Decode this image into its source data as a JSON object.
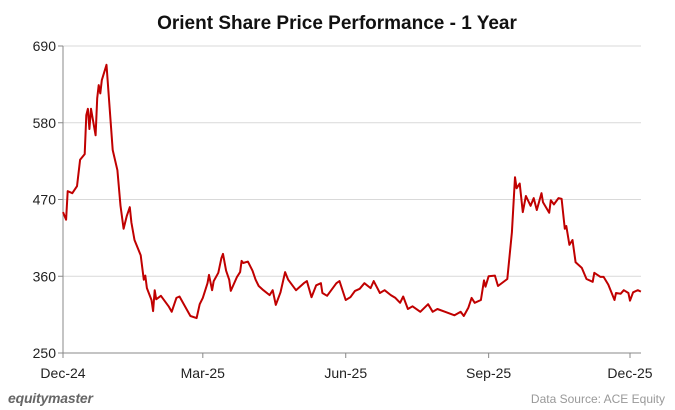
{
  "chart_data": {
    "type": "line",
    "title": "Orient Share Price Performance - 1 Year",
    "xlabel": "",
    "ylabel": "",
    "ylim": [
      250,
      690
    ],
    "y_ticks": [
      250,
      360,
      470,
      580,
      690
    ],
    "x_ticks": [
      {
        "label": "Dec-24",
        "date": "2024-12-01"
      },
      {
        "label": "Mar-25",
        "date": "2025-03-01"
      },
      {
        "label": "Jun-25",
        "date": "2025-06-01"
      },
      {
        "label": "Sep-25",
        "date": "2025-09-01"
      },
      {
        "label": "Dec-25",
        "date": "2025-12-01"
      }
    ],
    "grid": "horizontal",
    "line_color": "#c00000",
    "series": [
      {
        "points": [
          [
            "2024-12-01",
            452
          ],
          [
            "2024-12-03",
            441
          ],
          [
            "2024-12-04",
            482
          ],
          [
            "2024-12-07",
            479
          ],
          [
            "2024-12-10",
            489
          ],
          [
            "2024-12-12",
            527
          ],
          [
            "2024-12-15",
            535
          ],
          [
            "2024-12-16",
            591
          ],
          [
            "2024-12-17",
            600
          ],
          [
            "2024-12-18",
            571
          ],
          [
            "2024-12-19",
            600
          ],
          [
            "2024-12-22",
            562
          ],
          [
            "2024-12-23",
            615
          ],
          [
            "2024-12-24",
            634
          ],
          [
            "2024-12-25",
            622
          ],
          [
            "2024-12-26",
            641
          ],
          [
            "2024-12-29",
            663
          ],
          [
            "2025-01-02",
            541
          ],
          [
            "2025-01-05",
            512
          ],
          [
            "2025-01-07",
            461
          ],
          [
            "2025-01-09",
            428
          ],
          [
            "2025-01-11",
            446
          ],
          [
            "2025-01-13",
            459
          ],
          [
            "2025-01-14",
            437
          ],
          [
            "2025-01-16",
            412
          ],
          [
            "2025-01-20",
            390
          ],
          [
            "2025-01-22",
            355
          ],
          [
            "2025-01-23",
            361
          ],
          [
            "2025-01-24",
            343
          ],
          [
            "2025-01-27",
            326
          ],
          [
            "2025-01-28",
            310
          ],
          [
            "2025-01-29",
            340
          ],
          [
            "2025-01-30",
            327
          ],
          [
            "2025-02-02",
            332
          ],
          [
            "2025-02-07",
            317
          ],
          [
            "2025-02-09",
            309
          ],
          [
            "2025-02-12",
            329
          ],
          [
            "2025-02-14",
            331
          ],
          [
            "2025-02-18",
            315
          ],
          [
            "2025-02-21",
            303
          ],
          [
            "2025-02-25",
            300
          ],
          [
            "2025-02-27",
            320
          ],
          [
            "2025-03-01",
            329
          ],
          [
            "2025-03-04",
            350
          ],
          [
            "2025-03-05",
            362
          ],
          [
            "2025-03-07",
            340
          ],
          [
            "2025-03-08",
            353
          ],
          [
            "2025-03-11",
            365
          ],
          [
            "2025-03-13",
            386
          ],
          [
            "2025-03-14",
            392
          ],
          [
            "2025-03-16",
            368
          ],
          [
            "2025-03-18",
            355
          ],
          [
            "2025-03-19",
            339
          ],
          [
            "2025-03-23",
            359
          ],
          [
            "2025-03-25",
            366
          ],
          [
            "2025-03-26",
            382
          ],
          [
            "2025-03-27",
            379
          ],
          [
            "2025-03-30",
            381
          ],
          [
            "2025-04-02",
            368
          ],
          [
            "2025-04-04",
            355
          ],
          [
            "2025-04-06",
            346
          ],
          [
            "2025-04-09",
            340
          ],
          [
            "2025-04-13",
            333
          ],
          [
            "2025-04-15",
            340
          ],
          [
            "2025-04-17",
            319
          ],
          [
            "2025-04-20",
            337
          ],
          [
            "2025-04-23",
            366
          ],
          [
            "2025-04-25",
            355
          ],
          [
            "2025-04-30",
            340
          ],
          [
            "2025-05-05",
            350
          ],
          [
            "2025-05-07",
            353
          ],
          [
            "2025-05-10",
            330
          ],
          [
            "2025-05-13",
            347
          ],
          [
            "2025-05-16",
            350
          ],
          [
            "2025-05-17",
            336
          ],
          [
            "2025-05-20",
            332
          ],
          [
            "2025-05-26",
            350
          ],
          [
            "2025-05-28",
            353
          ],
          [
            "2025-06-01",
            326
          ],
          [
            "2025-06-04",
            330
          ],
          [
            "2025-06-07",
            339
          ],
          [
            "2025-06-10",
            342
          ],
          [
            "2025-06-13",
            350
          ],
          [
            "2025-06-17",
            343
          ],
          [
            "2025-06-19",
            353
          ],
          [
            "2025-06-23",
            336
          ],
          [
            "2025-06-26",
            340
          ],
          [
            "2025-06-30",
            333
          ],
          [
            "2025-07-03",
            329
          ],
          [
            "2025-07-06",
            322
          ],
          [
            "2025-07-08",
            331
          ],
          [
            "2025-07-11",
            313
          ],
          [
            "2025-07-14",
            317
          ],
          [
            "2025-07-19",
            309
          ],
          [
            "2025-07-24",
            320
          ],
          [
            "2025-07-27",
            309
          ],
          [
            "2025-07-30",
            313
          ],
          [
            "2025-08-04",
            309
          ],
          [
            "2025-08-10",
            304
          ],
          [
            "2025-08-14",
            309
          ],
          [
            "2025-08-16",
            303
          ],
          [
            "2025-08-19",
            315
          ],
          [
            "2025-08-21",
            329
          ],
          [
            "2025-08-23",
            322
          ],
          [
            "2025-08-27",
            326
          ],
          [
            "2025-08-29",
            354
          ],
          [
            "2025-08-30",
            345
          ],
          [
            "2025-09-01",
            360
          ],
          [
            "2025-09-05",
            361
          ],
          [
            "2025-09-07",
            346
          ],
          [
            "2025-09-13",
            356
          ],
          [
            "2025-09-16",
            423
          ],
          [
            "2025-09-18",
            502
          ],
          [
            "2025-09-19",
            486
          ],
          [
            "2025-09-21",
            493
          ],
          [
            "2025-09-23",
            452
          ],
          [
            "2025-09-25",
            475
          ],
          [
            "2025-09-28",
            461
          ],
          [
            "2025-09-30",
            472
          ],
          [
            "2025-10-02",
            455
          ],
          [
            "2025-10-05",
            479
          ],
          [
            "2025-10-06",
            466
          ],
          [
            "2025-10-10",
            451
          ],
          [
            "2025-10-11",
            469
          ],
          [
            "2025-10-13",
            463
          ],
          [
            "2025-10-16",
            472
          ],
          [
            "2025-10-18",
            471
          ],
          [
            "2025-10-20",
            428
          ],
          [
            "2025-10-21",
            432
          ],
          [
            "2025-10-23",
            405
          ],
          [
            "2025-10-25",
            412
          ],
          [
            "2025-10-27",
            380
          ],
          [
            "2025-10-31",
            372
          ],
          [
            "2025-11-03",
            356
          ],
          [
            "2025-11-07",
            352
          ],
          [
            "2025-11-08",
            365
          ],
          [
            "2025-11-12",
            359
          ],
          [
            "2025-11-14",
            359
          ],
          [
            "2025-11-17",
            348
          ],
          [
            "2025-11-21",
            326
          ],
          [
            "2025-11-22",
            336
          ],
          [
            "2025-11-25",
            335
          ],
          [
            "2025-11-27",
            340
          ],
          [
            "2025-11-30",
            336
          ],
          [
            "2025-12-01",
            325
          ],
          [
            "2025-12-03",
            337
          ],
          [
            "2025-12-06",
            340
          ],
          [
            "2025-12-08",
            338
          ]
        ]
      }
    ]
  },
  "footer": {
    "brand": "equitymaster",
    "source": "Data Source: ACE Equity"
  }
}
